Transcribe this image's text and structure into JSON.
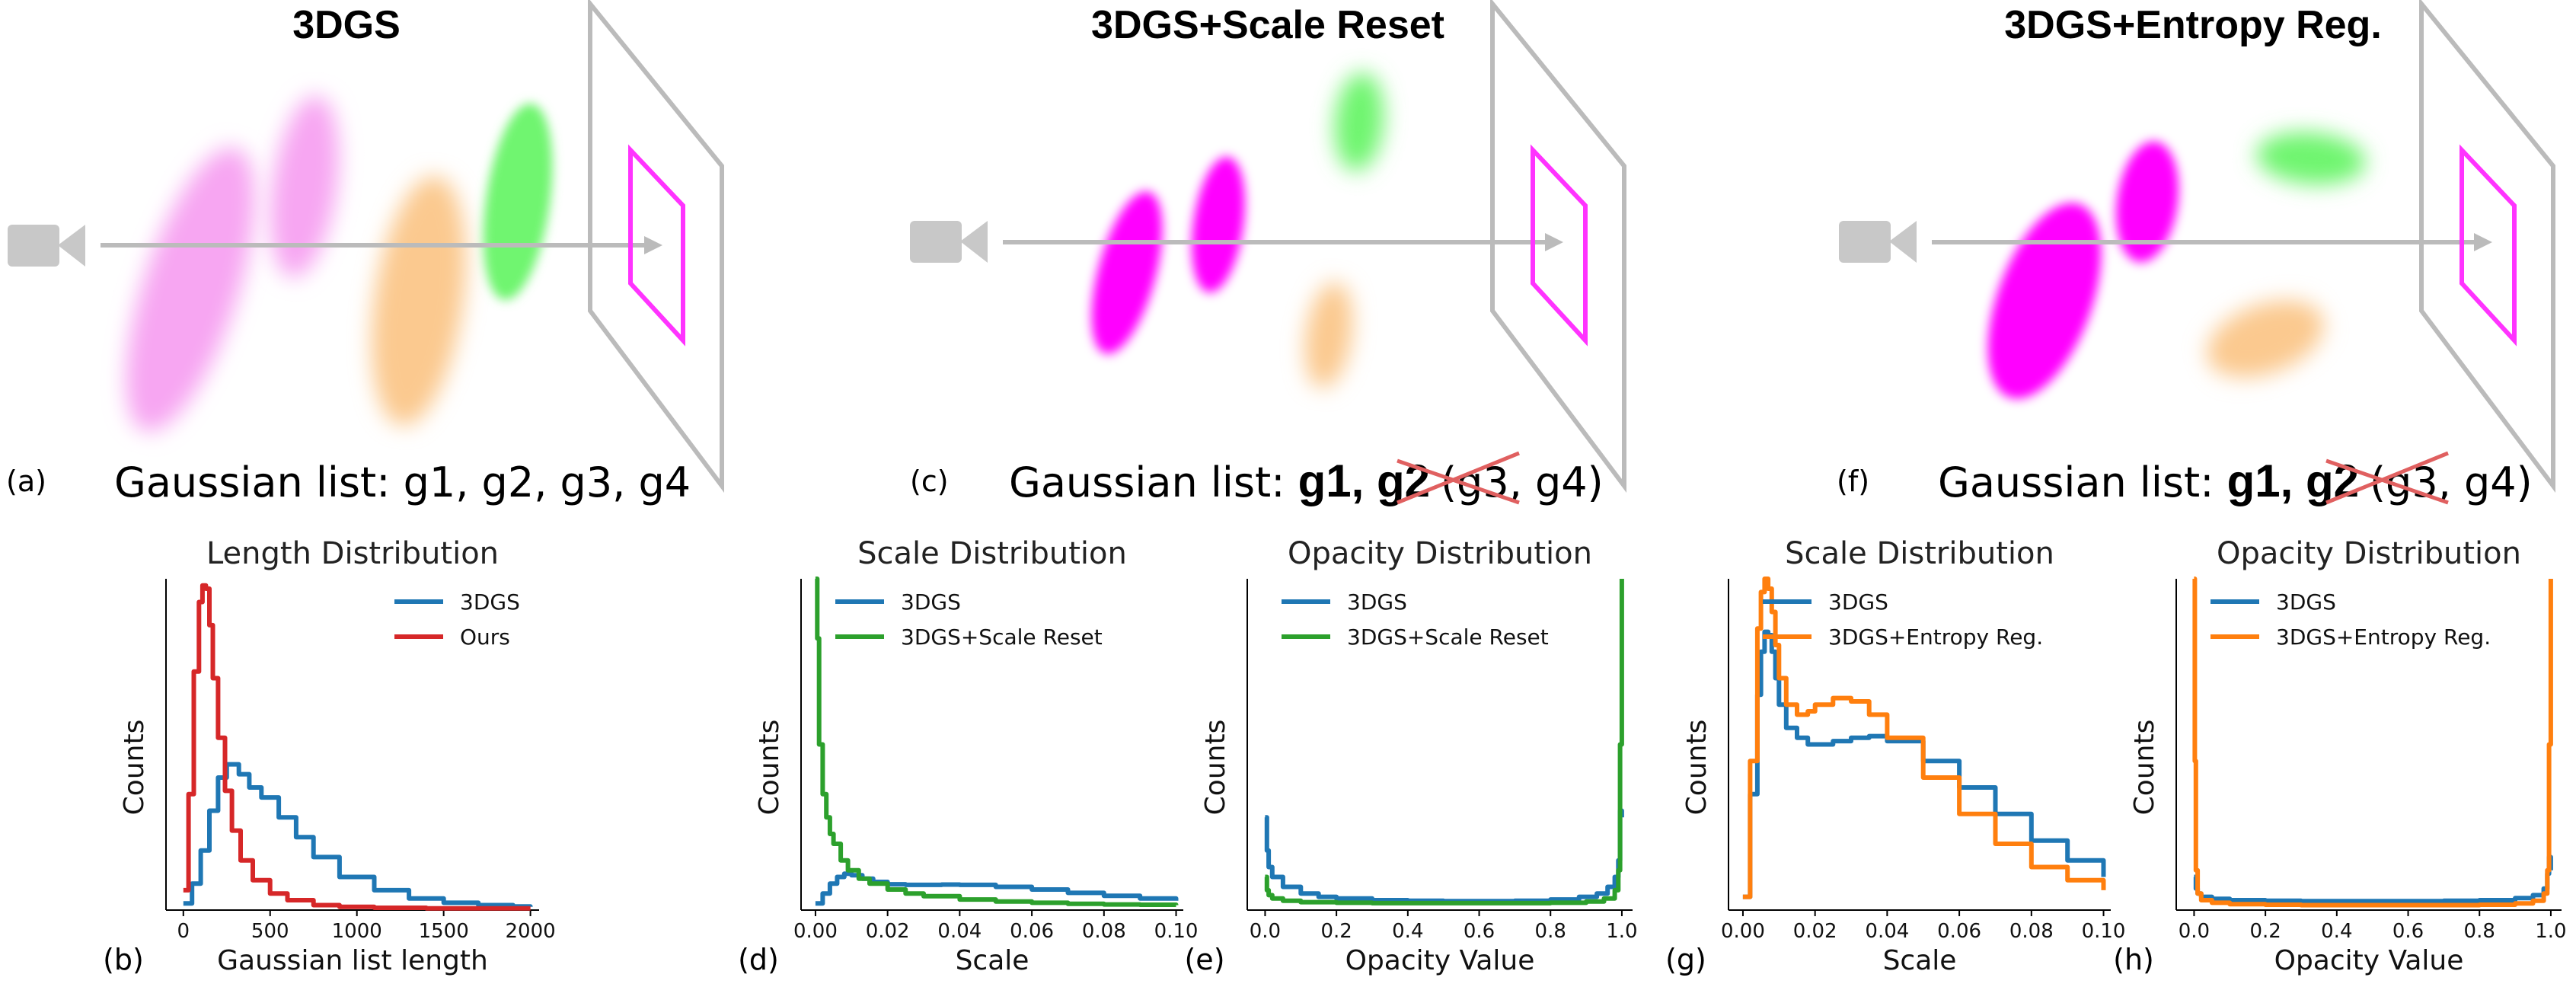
{
  "panels_top": [
    {
      "title": "3DGS",
      "letter": "(a)",
      "list_prefix": "Gaussian list: ",
      "list_items": "g1, g2, g3, g4",
      "bold_items": "",
      "struck_items": ""
    },
    {
      "title": "3DGS+Scale Reset",
      "letter": "(c)",
      "list_prefix": "Gaussian list: ",
      "list_items": "",
      "bold_items": "g1, g2",
      "struck_items": "(g3, g4)"
    },
    {
      "title": "3DGS+Entropy Reg.",
      "letter": "(f)",
      "list_prefix": "Gaussian list: ",
      "list_items": "",
      "bold_items": "g1, g2",
      "struck_items": "(g3, g4)"
    }
  ],
  "colors": {
    "blue": "#1f77b4",
    "red": "#d62728",
    "green": "#2ca02c",
    "orange": "#ff7f0e",
    "pink": "#f7a6f2",
    "magenta": "#ff00ff",
    "peach": "#fbc98f",
    "lightgreen": "#6ff56f",
    "gray": "#bbbbbb"
  },
  "chart_data": [
    {
      "id": "b",
      "letter": "(b)",
      "type": "line",
      "title": "Length Distribution",
      "xlabel": "Gaussian list length",
      "ylabel": "Counts",
      "xlim": [
        -100,
        2050
      ],
      "ylim": [
        0,
        1.0
      ],
      "xticks": [
        0,
        500,
        1000,
        1500,
        2000
      ],
      "xtick_labels": [
        "0",
        "500",
        "1000",
        "1500",
        "2000"
      ],
      "series": [
        {
          "name": "3DGS",
          "color": "#1f77b4",
          "x": [
            0,
            50,
            100,
            150,
            200,
            250,
            280,
            320,
            380,
            450,
            550,
            650,
            750,
            900,
            1100,
            1300,
            1500,
            1700,
            1900,
            2000
          ],
          "y": [
            0.02,
            0.08,
            0.18,
            0.3,
            0.4,
            0.44,
            0.44,
            0.41,
            0.37,
            0.34,
            0.28,
            0.22,
            0.16,
            0.1,
            0.06,
            0.035,
            0.022,
            0.015,
            0.011,
            0.01
          ]
        },
        {
          "name": "Ours",
          "color": "#d62728",
          "x": [
            0,
            30,
            60,
            90,
            110,
            130,
            150,
            170,
            200,
            240,
            280,
            330,
            400,
            500,
            600,
            750,
            900,
            1100,
            1400,
            1700,
            2000
          ],
          "y": [
            0.06,
            0.35,
            0.72,
            0.93,
            0.98,
            0.97,
            0.86,
            0.7,
            0.52,
            0.36,
            0.24,
            0.15,
            0.09,
            0.05,
            0.03,
            0.015,
            0.01,
            0.007,
            0.005,
            0.005,
            0.005
          ]
        }
      ]
    },
    {
      "id": "d",
      "letter": "(d)",
      "type": "line",
      "title": "Scale Distribution",
      "xlabel": "Scale",
      "ylabel": "Counts",
      "xlim": [
        -0.004,
        0.102
      ],
      "ylim": [
        0,
        1.0
      ],
      "xticks": [
        0,
        0.02,
        0.04,
        0.06,
        0.08,
        0.1
      ],
      "xtick_labels": [
        "0.00",
        "0.02",
        "0.04",
        "0.06",
        "0.08",
        "0.10"
      ],
      "series": [
        {
          "name": "3DGS",
          "color": "#1f77b4",
          "x": [
            0,
            0.002,
            0.004,
            0.006,
            0.008,
            0.01,
            0.013,
            0.016,
            0.02,
            0.025,
            0.03,
            0.035,
            0.04,
            0.05,
            0.06,
            0.07,
            0.08,
            0.09,
            0.1
          ],
          "y": [
            0.02,
            0.05,
            0.08,
            0.1,
            0.11,
            0.105,
            0.095,
            0.085,
            0.078,
            0.076,
            0.076,
            0.077,
            0.076,
            0.07,
            0.062,
            0.052,
            0.043,
            0.035,
            0.028
          ]
        },
        {
          "name": "3DGS+Scale Reset",
          "color": "#2ca02c",
          "x": [
            0,
            0.0005,
            0.001,
            0.002,
            0.003,
            0.004,
            0.005,
            0.007,
            0.009,
            0.012,
            0.015,
            0.02,
            0.025,
            0.03,
            0.04,
            0.05,
            0.06,
            0.07,
            0.08,
            0.09,
            0.1
          ],
          "y": [
            1.0,
            0.82,
            0.5,
            0.35,
            0.28,
            0.23,
            0.2,
            0.15,
            0.12,
            0.095,
            0.08,
            0.062,
            0.05,
            0.042,
            0.032,
            0.026,
            0.022,
            0.019,
            0.017,
            0.016,
            0.015
          ]
        }
      ]
    },
    {
      "id": "e",
      "letter": "(e)",
      "type": "line",
      "title": "Opacity Distribution",
      "xlabel": "Opacity Value",
      "ylabel": "Counts",
      "xlim": [
        -0.05,
        1.03
      ],
      "ylim": [
        0,
        1.0
      ],
      "xticks": [
        0,
        0.2,
        0.4,
        0.6,
        0.8,
        1.0
      ],
      "xtick_labels": [
        "0.0",
        "0.2",
        "0.4",
        "0.6",
        "0.8",
        "1.0"
      ],
      "series": [
        {
          "name": "3DGS",
          "color": "#1f77b4",
          "x": [
            0,
            0.005,
            0.01,
            0.02,
            0.05,
            0.1,
            0.15,
            0.2,
            0.3,
            0.4,
            0.5,
            0.6,
            0.7,
            0.8,
            0.88,
            0.93,
            0.96,
            0.98,
            0.99,
            0.995,
            1.0
          ],
          "y": [
            0.28,
            0.18,
            0.13,
            0.1,
            0.07,
            0.05,
            0.04,
            0.035,
            0.03,
            0.028,
            0.027,
            0.027,
            0.028,
            0.032,
            0.04,
            0.05,
            0.07,
            0.1,
            0.15,
            0.3,
            0.28
          ]
        },
        {
          "name": "3DGS+Scale Reset",
          "color": "#2ca02c",
          "x": [
            0,
            0.005,
            0.01,
            0.02,
            0.05,
            0.1,
            0.2,
            0.3,
            0.4,
            0.5,
            0.6,
            0.7,
            0.8,
            0.9,
            0.95,
            0.98,
            0.99,
            0.995,
            1.0
          ],
          "y": [
            0.1,
            0.06,
            0.045,
            0.035,
            0.028,
            0.024,
            0.022,
            0.021,
            0.021,
            0.021,
            0.021,
            0.021,
            0.022,
            0.026,
            0.035,
            0.06,
            0.12,
            0.5,
            1.0
          ]
        }
      ]
    },
    {
      "id": "g",
      "letter": "(g)",
      "type": "line",
      "title": "Scale Distribution",
      "xlabel": "Scale",
      "ylabel": "Counts",
      "xlim": [
        -0.004,
        0.102
      ],
      "ylim": [
        0,
        1.0
      ],
      "xticks": [
        0,
        0.02,
        0.04,
        0.06,
        0.08,
        0.1
      ],
      "xtick_labels": [
        "0.00",
        "0.02",
        "0.04",
        "0.06",
        "0.08",
        "0.10"
      ],
      "series": [
        {
          "name": "3DGS",
          "color": "#1f77b4",
          "x": [
            0,
            0.002,
            0.004,
            0.005,
            0.006,
            0.007,
            0.008,
            0.009,
            0.01,
            0.012,
            0.015,
            0.018,
            0.02,
            0.025,
            0.03,
            0.035,
            0.04,
            0.05,
            0.06,
            0.07,
            0.08,
            0.09,
            0.1
          ],
          "y": [
            0.04,
            0.35,
            0.65,
            0.78,
            0.84,
            0.83,
            0.78,
            0.7,
            0.62,
            0.55,
            0.52,
            0.5,
            0.5,
            0.51,
            0.52,
            0.525,
            0.51,
            0.45,
            0.37,
            0.29,
            0.21,
            0.15,
            0.1
          ]
        },
        {
          "name": "3DGS+Entropy Reg.",
          "color": "#ff7f0e",
          "x": [
            0,
            0.002,
            0.004,
            0.005,
            0.006,
            0.007,
            0.008,
            0.009,
            0.01,
            0.012,
            0.015,
            0.018,
            0.02,
            0.025,
            0.03,
            0.035,
            0.04,
            0.05,
            0.06,
            0.07,
            0.08,
            0.09,
            0.1
          ],
          "y": [
            0.04,
            0.45,
            0.85,
            0.96,
            1.0,
            0.97,
            0.9,
            0.8,
            0.7,
            0.62,
            0.59,
            0.6,
            0.62,
            0.64,
            0.63,
            0.59,
            0.52,
            0.4,
            0.29,
            0.2,
            0.13,
            0.09,
            0.06
          ]
        }
      ]
    },
    {
      "id": "h",
      "letter": "(h)",
      "type": "line",
      "title": "Opacity Distribution",
      "xlabel": "Opacity Value",
      "ylabel": "Counts",
      "xlim": [
        -0.05,
        1.03
      ],
      "ylim": [
        0,
        1.0
      ],
      "xticks": [
        0,
        0.2,
        0.4,
        0.6,
        0.8,
        1.0
      ],
      "xtick_labels": [
        "0.0",
        "0.2",
        "0.4",
        "0.6",
        "0.8",
        "1.0"
      ],
      "series": [
        {
          "name": "3DGS",
          "color": "#1f77b4",
          "x": [
            0,
            0.005,
            0.01,
            0.02,
            0.05,
            0.1,
            0.2,
            0.3,
            0.4,
            0.5,
            0.6,
            0.7,
            0.8,
            0.9,
            0.95,
            0.98,
            0.99,
            0.995,
            1.0
          ],
          "y": [
            0.1,
            0.065,
            0.05,
            0.04,
            0.034,
            0.03,
            0.028,
            0.027,
            0.027,
            0.027,
            0.027,
            0.028,
            0.03,
            0.036,
            0.045,
            0.065,
            0.11,
            0.16,
            0.12
          ]
        },
        {
          "name": "3DGS+Entropy Reg.",
          "color": "#ff7f0e",
          "x": [
            0,
            0.002,
            0.005,
            0.01,
            0.02,
            0.05,
            0.1,
            0.2,
            0.3,
            0.4,
            0.5,
            0.6,
            0.7,
            0.8,
            0.9,
            0.95,
            0.98,
            0.99,
            0.995,
            1.0
          ],
          "y": [
            1.0,
            0.45,
            0.12,
            0.05,
            0.03,
            0.022,
            0.018,
            0.016,
            0.015,
            0.015,
            0.015,
            0.015,
            0.015,
            0.016,
            0.02,
            0.028,
            0.05,
            0.12,
            0.5,
            1.0
          ]
        }
      ]
    }
  ]
}
